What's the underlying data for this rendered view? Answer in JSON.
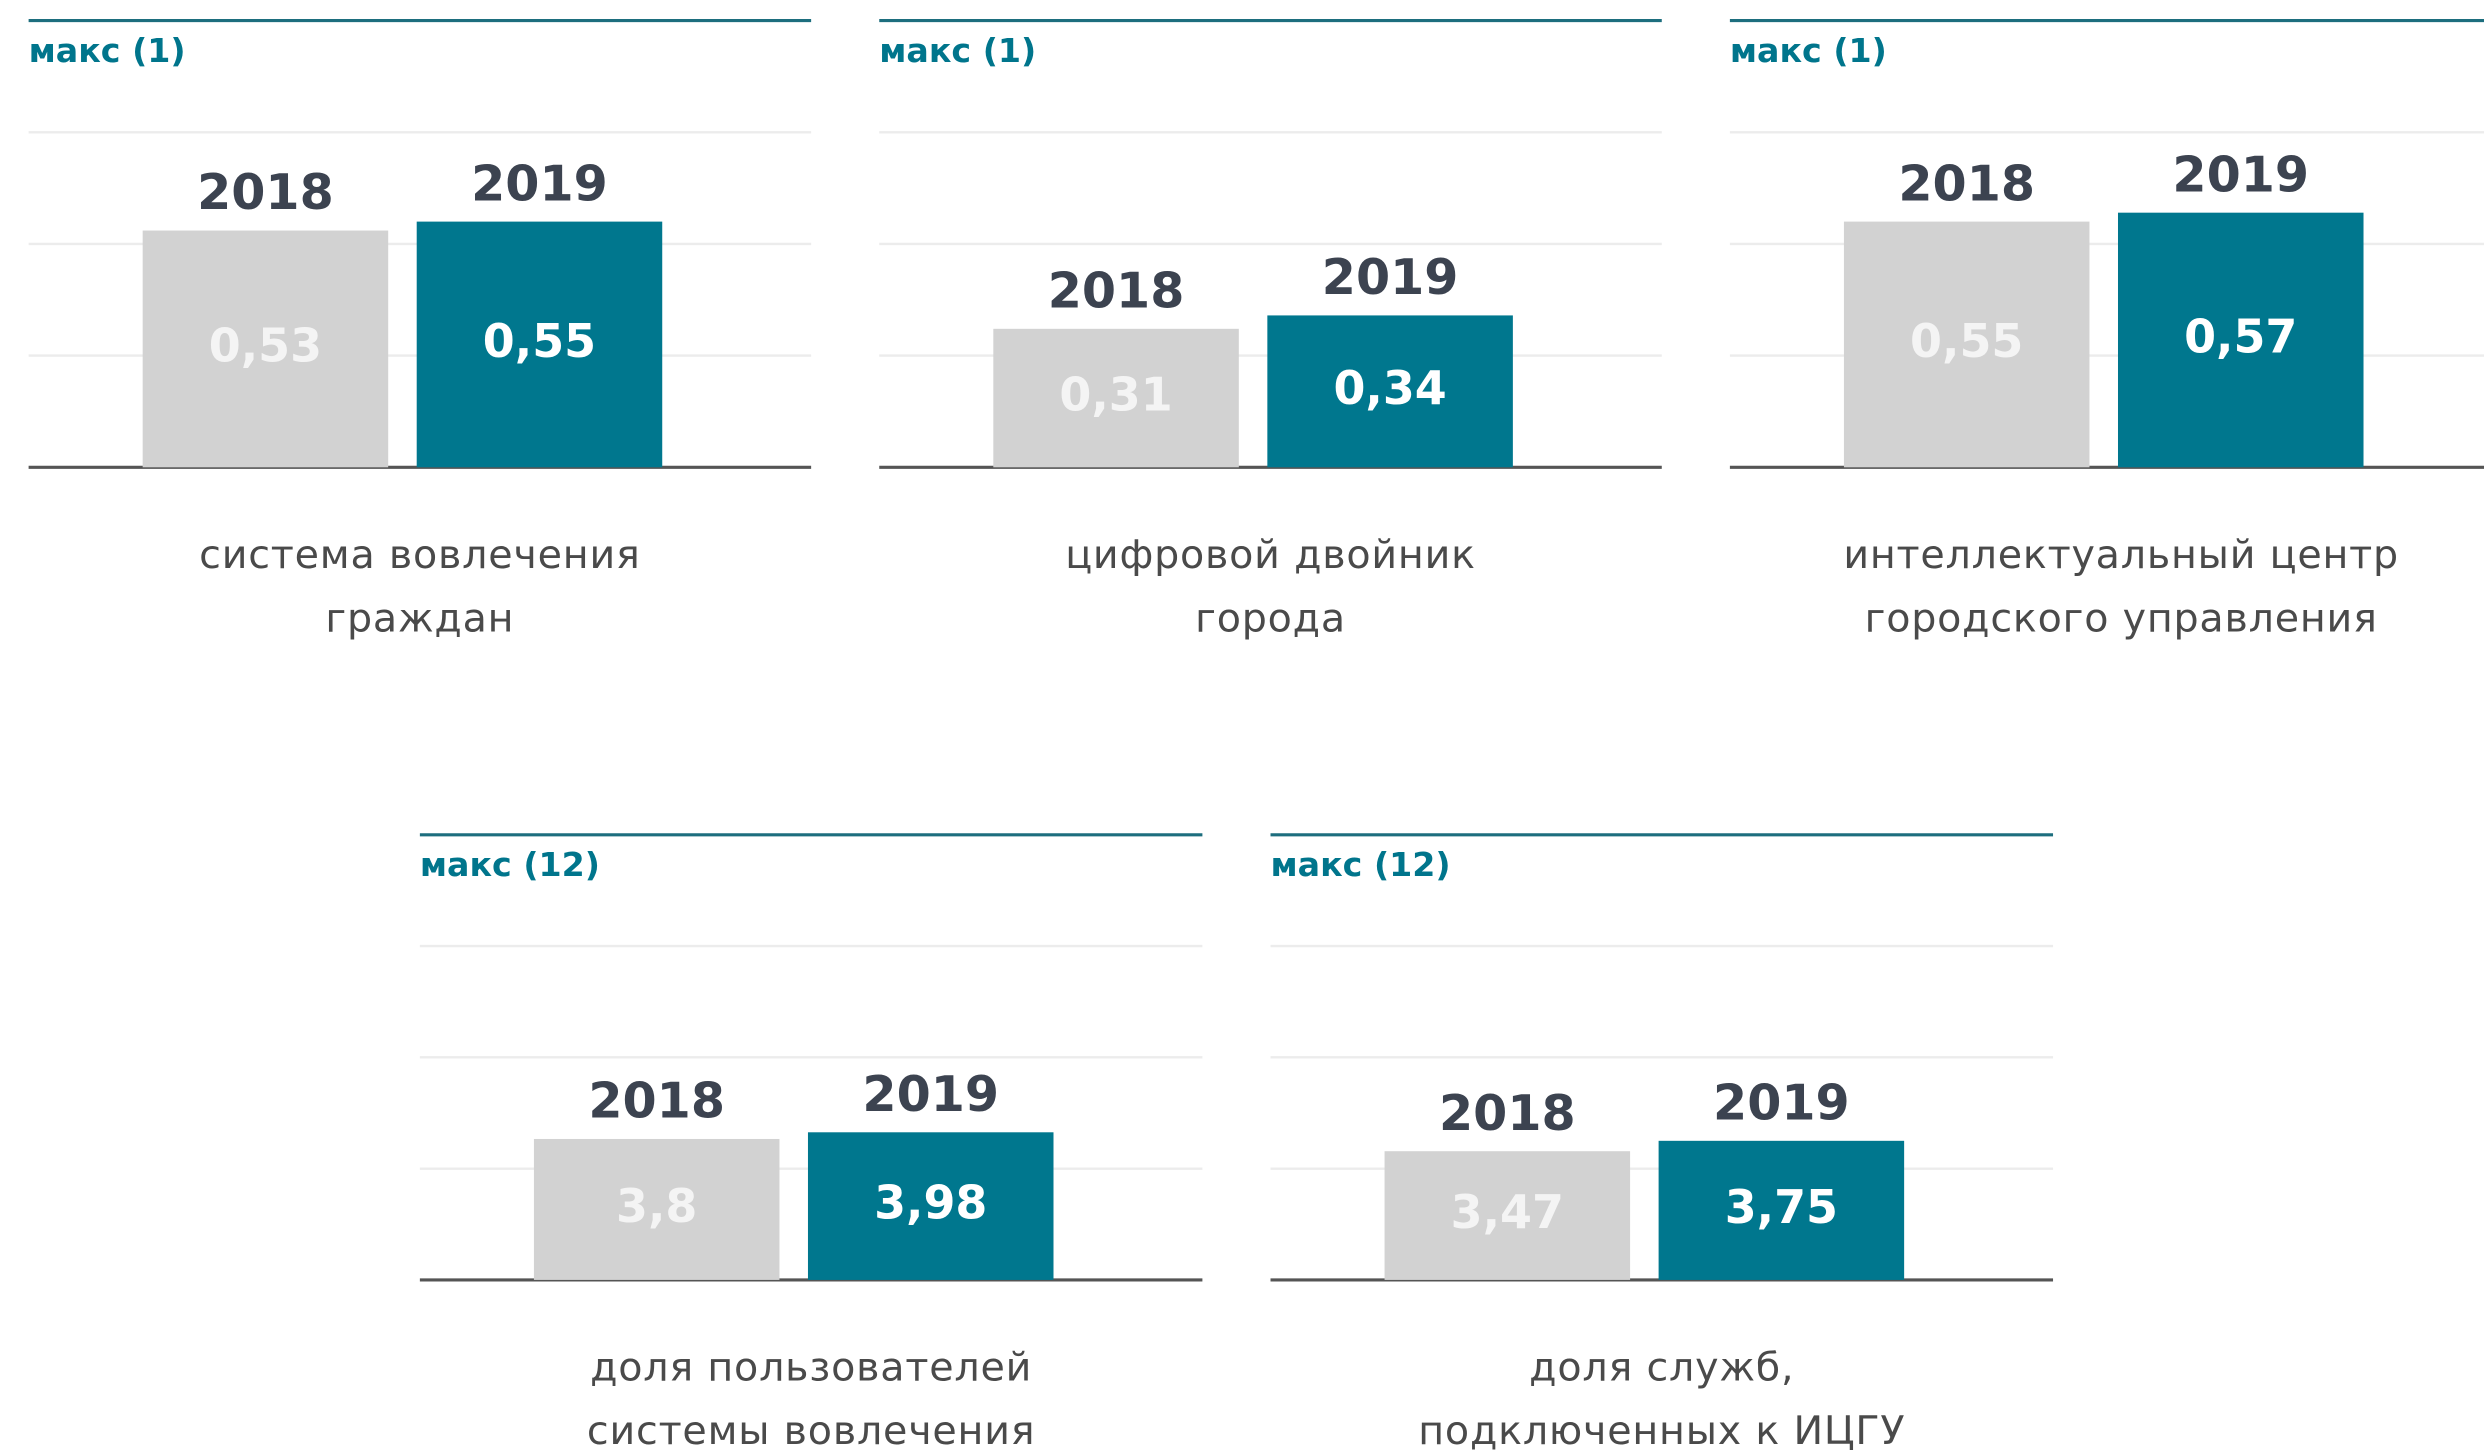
{
  "chart_data": [
    {
      "type": "bar",
      "ylabel": "макс (1)",
      "categories": [
        "2018",
        "2019"
      ],
      "values": [
        0.53,
        0.55
      ],
      "value_labels": [
        "0,53",
        "0,55"
      ],
      "colors": [
        "#d2d2d2",
        "#00778e"
      ],
      "ylim": [
        0,
        1
      ],
      "yticks": [
        0,
        0.25,
        0.5,
        0.75,
        1
      ],
      "xlabel": [
        "система вовлечения",
        "граждан"
      ]
    },
    {
      "type": "bar",
      "ylabel": "макс (1)",
      "categories": [
        "2018",
        "2019"
      ],
      "values": [
        0.31,
        0.34
      ],
      "value_labels": [
        "0,31",
        "0,34"
      ],
      "colors": [
        "#d2d2d2",
        "#00778e"
      ],
      "ylim": [
        0,
        1
      ],
      "yticks": [
        0,
        0.25,
        0.5,
        0.75,
        1
      ],
      "xlabel": [
        "цифровой двойник",
        "города"
      ]
    },
    {
      "type": "bar",
      "ylabel": "макс (1)",
      "categories": [
        "2018",
        "2019"
      ],
      "values": [
        0.55,
        0.57
      ],
      "value_labels": [
        "0,55",
        "0,57"
      ],
      "colors": [
        "#d2d2d2",
        "#00778e"
      ],
      "ylim": [
        0,
        1
      ],
      "yticks": [
        0,
        0.25,
        0.5,
        0.75,
        1
      ],
      "xlabel": [
        "интеллектуальный центр",
        "городского управления"
      ]
    },
    {
      "type": "bar",
      "ylabel": "макс (12)",
      "categories": [
        "2018",
        "2019"
      ],
      "values": [
        3.8,
        3.98
      ],
      "value_labels": [
        "3,8",
        "3,98"
      ],
      "colors": [
        "#d2d2d2",
        "#00778e"
      ],
      "ylim": [
        0,
        12
      ],
      "yticks": [
        0,
        3,
        6,
        9,
        12
      ],
      "xlabel": [
        "доля пользователей",
        "системы вовлечения"
      ]
    },
    {
      "type": "bar",
      "ylabel": "макс (12)",
      "categories": [
        "2018",
        "2019"
      ],
      "values": [
        3.47,
        3.75
      ],
      "value_labels": [
        "3,47",
        "3,75"
      ],
      "colors": [
        "#d2d2d2",
        "#00778e"
      ],
      "ylim": [
        0,
        12
      ],
      "yticks": [
        0,
        3,
        6,
        9,
        12
      ],
      "xlabel": [
        "доля служб,",
        "подключенных к ИЦГУ"
      ]
    }
  ]
}
